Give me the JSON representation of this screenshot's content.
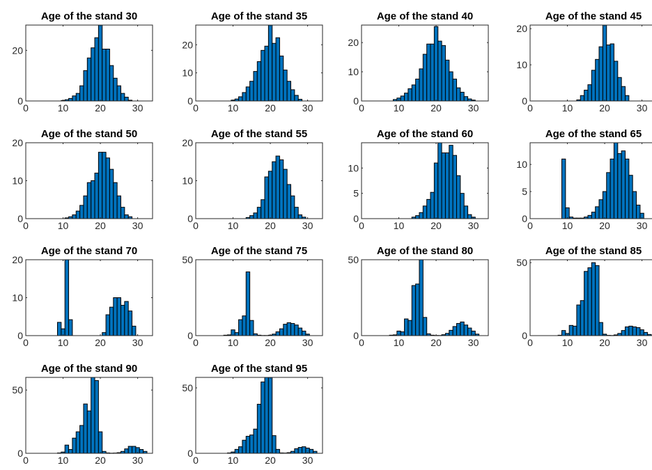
{
  "chart_data": [
    {
      "type": "bar",
      "title": "Age of the stand 30",
      "xlim": [
        0,
        34
      ],
      "ylim": [
        0,
        30
      ],
      "yticks": [
        0,
        20
      ],
      "xticks": [
        0,
        10,
        20,
        30
      ],
      "bin_width": 1,
      "x": [
        10,
        11,
        12,
        13,
        14,
        15,
        16,
        17,
        18,
        19,
        20,
        21,
        22,
        23,
        24,
        25,
        26,
        27,
        28
      ],
      "values": [
        0.2,
        0.5,
        1,
        2,
        3,
        6,
        12,
        17,
        21,
        25,
        30,
        20.5,
        20.5,
        14,
        9,
        6,
        3,
        1.5,
        0.3
      ]
    },
    {
      "type": "bar",
      "title": "Age of the stand 35",
      "xlim": [
        0,
        34
      ],
      "ylim": [
        0,
        27
      ],
      "yticks": [
        0,
        10,
        20
      ],
      "xticks": [
        0,
        10,
        20,
        30
      ],
      "bin_width": 1,
      "x": [
        10,
        11,
        12,
        13,
        14,
        15,
        16,
        17,
        18,
        19,
        20,
        21,
        22,
        23,
        24,
        25,
        26,
        27,
        28
      ],
      "values": [
        0.3,
        0.7,
        1.5,
        3,
        5,
        7,
        10.5,
        14,
        18,
        19.5,
        27,
        20.5,
        22.5,
        16,
        11,
        7,
        4,
        2,
        0.6
      ]
    },
    {
      "type": "bar",
      "title": "Age of the stand 40",
      "xlim": [
        0,
        34
      ],
      "ylim": [
        0,
        26
      ],
      "yticks": [
        0,
        10,
        20
      ],
      "xticks": [
        0,
        10,
        20,
        30
      ],
      "bin_width": 1,
      "x": [
        9,
        10,
        11,
        12,
        13,
        14,
        15,
        16,
        17,
        18,
        19,
        20,
        21,
        22,
        23,
        24,
        25,
        26,
        27,
        28,
        29,
        30
      ],
      "values": [
        0.5,
        1,
        1.7,
        2.7,
        4.2,
        5.5,
        7.5,
        11,
        16,
        19.5,
        19.5,
        25.5,
        20.5,
        19,
        14,
        10,
        7.5,
        4.5,
        3,
        1.5,
        0.7,
        0.3
      ]
    },
    {
      "type": "bar",
      "title": "Age of the stand 45",
      "xlim": [
        0,
        34
      ],
      "ylim": [
        0,
        21
      ],
      "yticks": [
        0,
        10,
        20
      ],
      "xticks": [
        0,
        10,
        20,
        30
      ],
      "bin_width": 1,
      "x": [
        13,
        14,
        15,
        16,
        17,
        18,
        19,
        20,
        21,
        22,
        23,
        24,
        25,
        26
      ],
      "values": [
        0.3,
        1.5,
        3,
        4.5,
        8.5,
        11.5,
        15,
        21,
        15.5,
        15.8,
        11,
        6.5,
        4,
        1.5
      ]
    },
    {
      "type": "bar",
      "title": "Age of the stand 50",
      "xlim": [
        0,
        34
      ],
      "ylim": [
        0,
        20
      ],
      "yticks": [
        0,
        10,
        20
      ],
      "xticks": [
        0,
        10,
        20,
        30
      ],
      "bin_width": 1,
      "x": [
        11,
        12,
        13,
        14,
        15,
        16,
        17,
        18,
        19,
        20,
        21,
        22,
        23,
        24,
        25,
        26,
        27,
        28
      ],
      "values": [
        0.2,
        0.5,
        1,
        2,
        3.5,
        6,
        9.5,
        10,
        12,
        17.5,
        17.5,
        16,
        13,
        9.5,
        6,
        3,
        1,
        0.5
      ]
    },
    {
      "type": "bar",
      "title": "Age of the stand 55",
      "xlim": [
        0,
        34
      ],
      "ylim": [
        0,
        20
      ],
      "yticks": [
        0,
        10,
        20
      ],
      "xticks": [
        0,
        10,
        20,
        30
      ],
      "bin_width": 1,
      "x": [
        14,
        15,
        16,
        17,
        18,
        19,
        20,
        21,
        22,
        23,
        24,
        25,
        26,
        27,
        28,
        29
      ],
      "values": [
        0.3,
        0.8,
        1.5,
        3,
        5,
        11,
        12.5,
        15,
        16.5,
        15.5,
        13,
        9,
        6,
        3,
        1,
        0.4
      ]
    },
    {
      "type": "bar",
      "title": "Age of the stand 60",
      "xlim": [
        0,
        34
      ],
      "ylim": [
        0,
        15
      ],
      "yticks": [
        0,
        5,
        10
      ],
      "xticks": [
        0,
        10,
        20,
        30
      ],
      "bin_width": 1,
      "x": [
        14,
        15,
        16,
        17,
        18,
        19,
        20,
        21,
        22,
        23,
        24,
        25,
        26,
        27,
        28,
        29,
        30
      ],
      "values": [
        0.3,
        0.6,
        1.2,
        2.5,
        3.8,
        5.2,
        11,
        15,
        13,
        13,
        14.5,
        12.5,
        8.5,
        5,
        2.5,
        0.8,
        0.3
      ]
    },
    {
      "type": "bar",
      "title": "Age of the stand 65",
      "xlim": [
        0,
        34
      ],
      "ylim": [
        0,
        14
      ],
      "yticks": [
        0,
        5,
        10
      ],
      "xticks": [
        0,
        10,
        20,
        30
      ],
      "bin_width": 1,
      "x": [
        9,
        10,
        11,
        12,
        13,
        14,
        15,
        16,
        17,
        18,
        19,
        20,
        21,
        22,
        23,
        24,
        25,
        26,
        27,
        28,
        29,
        30
      ],
      "values": [
        11,
        2,
        0.3,
        0.1,
        0.1,
        0.1,
        0.3,
        0.6,
        1.2,
        2.2,
        3.5,
        5,
        8.5,
        11,
        14,
        12,
        12.5,
        11,
        8,
        5,
        2.5,
        1
      ]
    },
    {
      "type": "bar",
      "title": "Age of the stand 70",
      "xlim": [
        0,
        34
      ],
      "ylim": [
        0,
        20
      ],
      "yticks": [
        0,
        10,
        20
      ],
      "xticks": [
        0,
        10,
        20,
        30
      ],
      "bin_width": 1,
      "x": [
        9,
        10,
        11,
        12,
        21,
        22,
        23,
        24,
        25,
        26,
        27,
        28,
        29
      ],
      "values": [
        3.5,
        1.8,
        20.5,
        4.2,
        0.8,
        5.5,
        7.5,
        10,
        10,
        8,
        9,
        6.5,
        2.5
      ]
    },
    {
      "type": "bar",
      "title": "Age of the stand 75",
      "xlim": [
        0,
        34
      ],
      "ylim": [
        0,
        50
      ],
      "yticks": [
        0,
        50
      ],
      "xticks": [
        0,
        10,
        20,
        30
      ],
      "bin_width": 1,
      "x": [
        8,
        9,
        10,
        11,
        12,
        13,
        14,
        15,
        16,
        17,
        18,
        19,
        20,
        21,
        22,
        23,
        24,
        25,
        26,
        27,
        28,
        29,
        30
      ],
      "values": [
        0.3,
        0.5,
        3.8,
        2,
        10.5,
        13,
        42,
        10,
        1.2,
        0.3,
        0.1,
        0.1,
        0.3,
        1,
        2.5,
        4.5,
        7.5,
        8.5,
        8,
        7,
        5,
        3,
        1
      ]
    },
    {
      "type": "bar",
      "title": "Age of the stand 80",
      "xlim": [
        0,
        34
      ],
      "ylim": [
        0,
        50
      ],
      "yticks": [
        0,
        50
      ],
      "xticks": [
        0,
        10,
        20,
        30
      ],
      "bin_width": 1,
      "x": [
        8,
        9,
        10,
        11,
        12,
        13,
        14,
        15,
        16,
        17,
        18,
        19,
        20,
        21,
        22,
        23,
        24,
        25,
        26,
        27,
        28,
        29,
        30,
        31
      ],
      "values": [
        0.3,
        0.5,
        3,
        2.5,
        11,
        10,
        33,
        34,
        50,
        12,
        1.2,
        0.3,
        0.1,
        0.1,
        0.6,
        1.5,
        3.5,
        6,
        8,
        9,
        7,
        5,
        3,
        1
      ]
    },
    {
      "type": "bar",
      "title": "Age of the stand 85",
      "xlim": [
        0,
        34
      ],
      "ylim": [
        0,
        52
      ],
      "yticks": [
        0,
        50
      ],
      "xticks": [
        0,
        10,
        20,
        30
      ],
      "bin_width": 1,
      "x": [
        8,
        9,
        10,
        11,
        12,
        13,
        14,
        15,
        16,
        17,
        18,
        19,
        20,
        21,
        22,
        23,
        24,
        25,
        26,
        27,
        28,
        29,
        30,
        31,
        32
      ],
      "values": [
        0.3,
        3.5,
        1.5,
        7,
        6.5,
        21,
        24,
        44,
        46.5,
        50,
        48,
        9,
        1,
        0.2,
        0.1,
        0.5,
        1.5,
        3.5,
        6,
        6.5,
        6,
        5.5,
        4,
        2.2,
        0.8
      ]
    },
    {
      "type": "bar",
      "title": "Age of the stand 90",
      "xlim": [
        0,
        34
      ],
      "ylim": [
        0,
        60
      ],
      "yticks": [
        0,
        50
      ],
      "xticks": [
        0,
        10,
        20,
        30
      ],
      "bin_width": 1,
      "x": [
        9,
        10,
        11,
        12,
        13,
        14,
        15,
        16,
        17,
        18,
        19,
        20,
        21,
        22,
        23,
        24,
        25,
        26,
        27,
        28,
        29,
        30,
        31,
        32
      ],
      "values": [
        0.3,
        1,
        6.5,
        3,
        12,
        17,
        22,
        39,
        33.5,
        60,
        57.5,
        17,
        1.5,
        0.3,
        0.1,
        0.2,
        0.5,
        1.5,
        3.5,
        5.5,
        5.5,
        4.5,
        3,
        1.5
      ]
    },
    {
      "type": "bar",
      "title": "Age of the stand 95",
      "xlim": [
        0,
        34
      ],
      "ylim": [
        0,
        58
      ],
      "yticks": [
        0,
        50
      ],
      "xticks": [
        0,
        10,
        20,
        30
      ],
      "bin_width": 1,
      "x": [
        9,
        10,
        11,
        12,
        13,
        14,
        15,
        16,
        17,
        18,
        19,
        20,
        21,
        22,
        23,
        24,
        25,
        26,
        27,
        28,
        29,
        30,
        31,
        32
      ],
      "values": [
        0.3,
        1,
        3,
        5,
        10,
        13,
        14,
        18.5,
        37.5,
        54.5,
        58,
        58,
        13.5,
        3,
        0.3,
        0.2,
        0.5,
        1.5,
        3.5,
        4.5,
        5,
        4,
        3,
        1.5
      ]
    }
  ]
}
